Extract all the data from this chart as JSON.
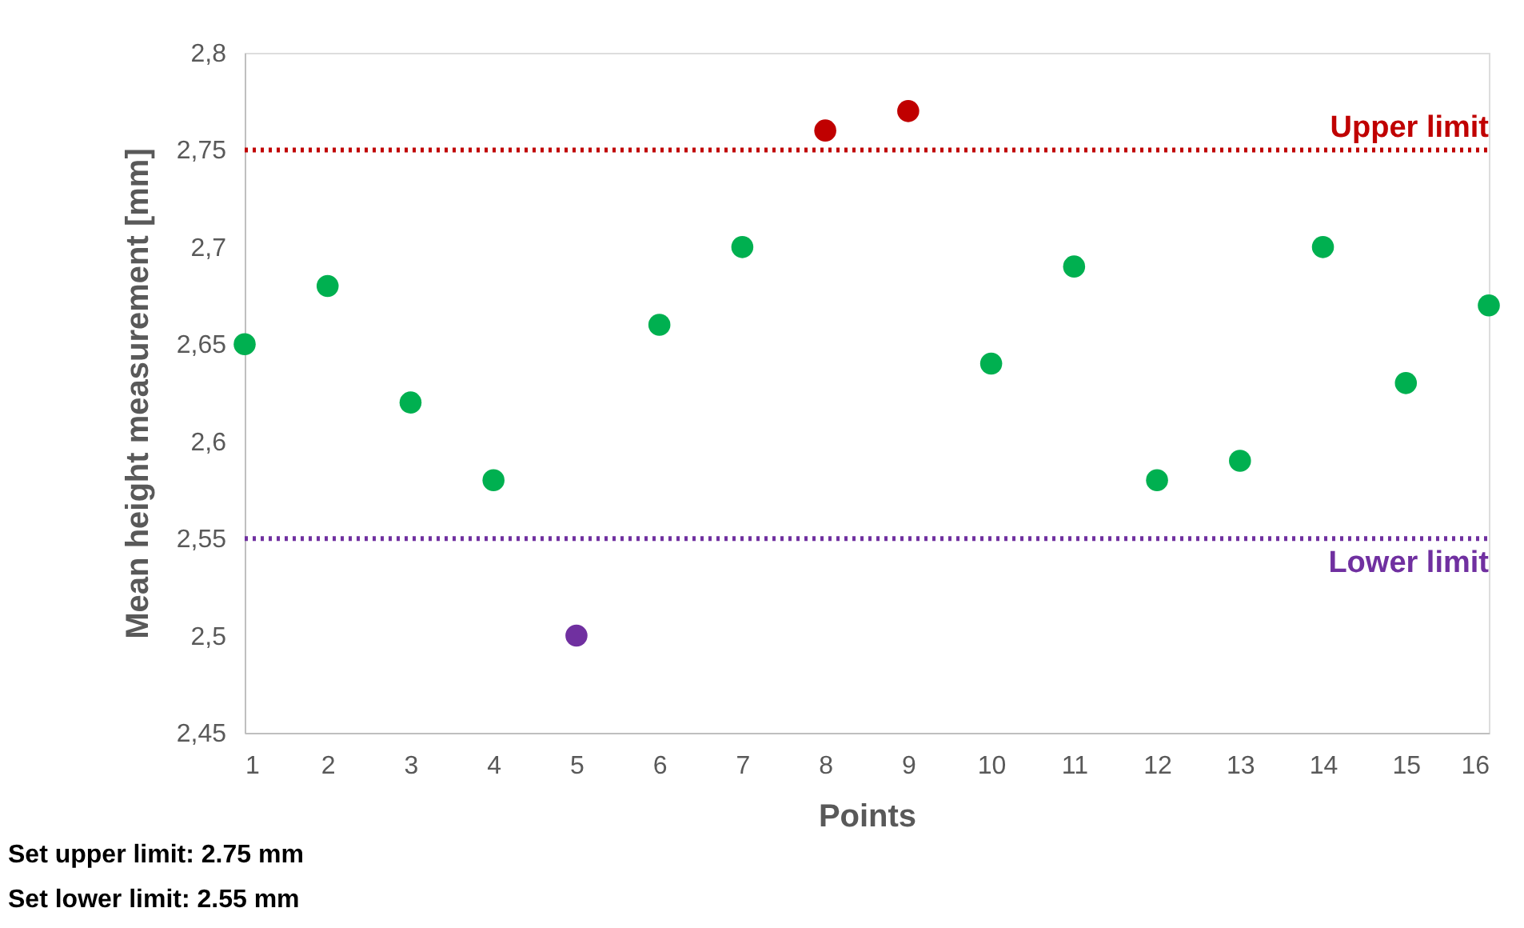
{
  "chart_data": {
    "type": "scatter",
    "xlabel": "Points",
    "ylabel": "Mean height measurement [mm]",
    "x": [
      1,
      2,
      3,
      4,
      5,
      6,
      7,
      8,
      9,
      10,
      11,
      12,
      13,
      14,
      15,
      16
    ],
    "values": [
      2.65,
      2.68,
      2.62,
      2.58,
      2.5,
      2.66,
      2.7,
      2.76,
      2.77,
      2.64,
      2.69,
      2.58,
      2.59,
      2.7,
      2.63,
      2.67
    ],
    "colors": [
      "#00b050",
      "#00b050",
      "#00b050",
      "#00b050",
      "#7030a0",
      "#00b050",
      "#00b050",
      "#c00000",
      "#c00000",
      "#00b050",
      "#00b050",
      "#00b050",
      "#00b050",
      "#00b050",
      "#00b050",
      "#00b050"
    ],
    "xlim": [
      1,
      16
    ],
    "xticks": [
      1,
      2,
      3,
      4,
      5,
      6,
      7,
      8,
      9,
      10,
      11,
      12,
      13,
      14,
      15,
      16
    ],
    "ylim": [
      2.45,
      2.8
    ],
    "yticks": [
      {
        "value": 2.45,
        "label": "2,45"
      },
      {
        "value": 2.5,
        "label": "2,5"
      },
      {
        "value": 2.55,
        "label": "2,55"
      },
      {
        "value": 2.6,
        "label": "2,6"
      },
      {
        "value": 2.65,
        "label": "2,65"
      },
      {
        "value": 2.7,
        "label": "2,7"
      },
      {
        "value": 2.75,
        "label": "2,75"
      },
      {
        "value": 2.8,
        "label": "2,8"
      }
    ],
    "ref_lines": [
      {
        "axis": "y",
        "value": 2.75,
        "label": "Upper limit",
        "color": "#c00000",
        "line_style": "dotted"
      },
      {
        "axis": "y",
        "value": 2.55,
        "label": "Lower limit",
        "color": "#7030a0",
        "line_style": "dotted"
      }
    ],
    "annotations": [
      "Set upper limit: 2.75 mm",
      "Set lower limit: 2.55 mm"
    ],
    "marker": "circle",
    "grid": false,
    "legend": false
  }
}
